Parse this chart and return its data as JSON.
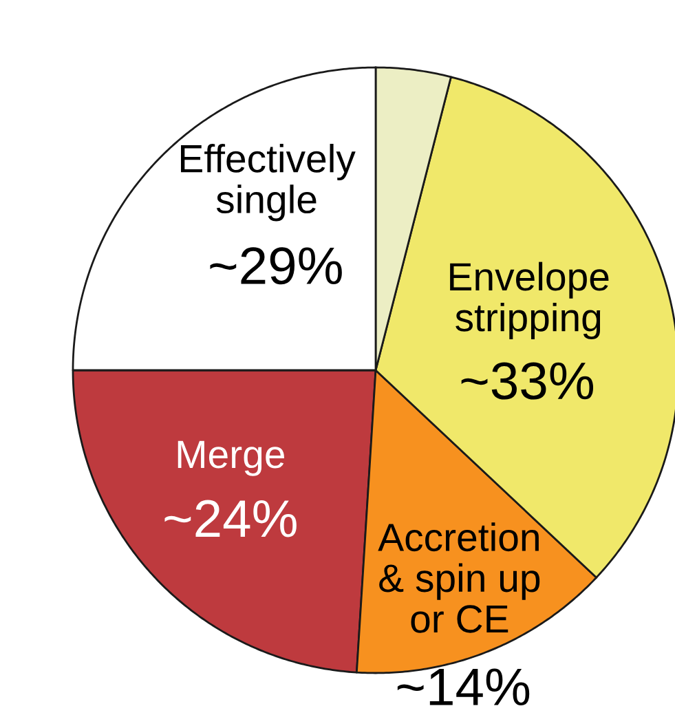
{
  "chart_data": {
    "type": "pie",
    "categories": [
      "Merge",
      "Accretion\n& spin up\nor CE",
      "Envelope\nstripping",
      null,
      "Effectively\nsingle"
    ],
    "values": [
      24,
      14,
      33,
      4,
      25
    ],
    "colors": [
      "#be3a3e",
      "#f7911f",
      "#f0e86a",
      "#eceec4",
      "#ffffff"
    ],
    "value_labels": [
      "~24%",
      "~14%",
      "~33%",
      null,
      null
    ],
    "annotations": [
      "~29%"
    ]
  }
}
